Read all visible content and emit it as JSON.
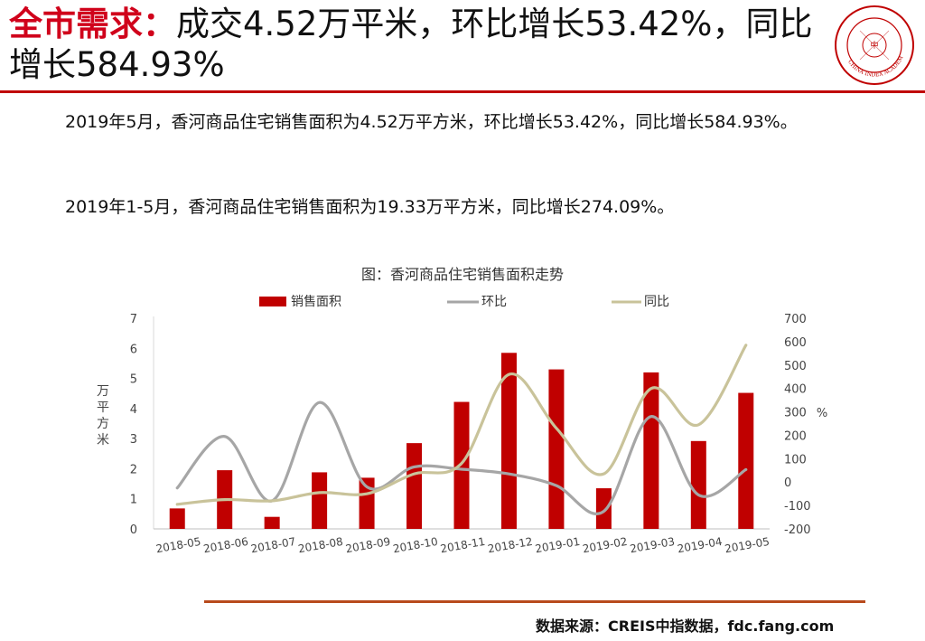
{
  "header": {
    "title_highlight": "全市需求：",
    "title_rest": "成交4.52万平米，环比增长53.42%，同比增长584.93%",
    "logo_text": "CHINA INDEX ACADEMY",
    "logo_center": "中 指"
  },
  "paragraphs": [
    "2019年5月，香河商品住宅销售面积为4.52万平方米，环比增长53.42%，同比增长584.93%。",
    "2019年1-5月，香河商品住宅销售面积为19.33万平方米，同比增长274.09%。"
  ],
  "chart_data": {
    "type": "bar",
    "title": "图：香河商品住宅销售面积走势",
    "categories": [
      "2018-05",
      "2018-06",
      "2018-07",
      "2018-08",
      "2018-09",
      "2018-10",
      "2018-11",
      "2018-12",
      "2019-01",
      "2019-02",
      "2019-03",
      "2019-04",
      "2019-05"
    ],
    "ylabel": "万平方米",
    "y2label": "%",
    "ylim": [
      0,
      7
    ],
    "y2lim": [
      -200,
      700
    ],
    "yticks": [
      "0",
      "1",
      "2",
      "3",
      "4",
      "5",
      "6",
      "7"
    ],
    "y2ticks": [
      "-200",
      "-100",
      "0",
      "100",
      "200",
      "300",
      "400",
      "500",
      "600",
      "700"
    ],
    "legend_position": "top",
    "series": [
      {
        "name": "销售面积",
        "kind": "bar",
        "axis": "left",
        "color": "#c00000",
        "values": [
          0.68,
          1.95,
          0.4,
          1.88,
          1.7,
          2.85,
          4.22,
          5.85,
          5.3,
          1.35,
          5.2,
          2.92,
          4.52
        ]
      },
      {
        "name": "环比",
        "kind": "line",
        "axis": "right",
        "color": "#a6a6a6",
        "values": [
          -25,
          195,
          -80,
          340,
          -20,
          65,
          55,
          35,
          -15,
          -125,
          280,
          -55,
          53.42
        ]
      },
      {
        "name": "同比",
        "kind": "line",
        "axis": "right",
        "color": "#c9c39a",
        "values": [
          -95,
          -75,
          -80,
          -45,
          -50,
          35,
          80,
          460,
          230,
          35,
          400,
          245,
          584.93
        ]
      }
    ]
  },
  "footer": {
    "source": "数据来源：CREIS中指数据，fdc.fang.com"
  }
}
